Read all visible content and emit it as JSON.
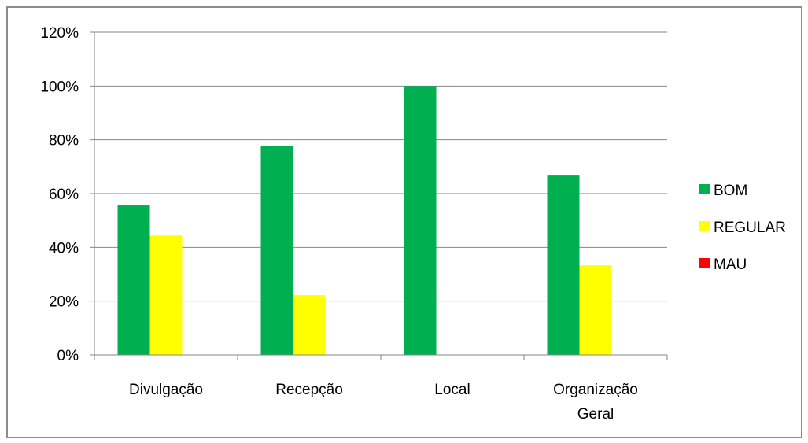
{
  "chart_data": {
    "type": "bar",
    "categories": [
      [
        "Divulgação"
      ],
      [
        "Recepção"
      ],
      [
        "Local"
      ],
      [
        "Organização",
        "Geral"
      ]
    ],
    "series": [
      {
        "name": "BOM",
        "color": "#00b050",
        "values": [
          55.6,
          77.8,
          100,
          66.7
        ]
      },
      {
        "name": "REGULAR",
        "color": "#ffff00",
        "values": [
          44.4,
          22.2,
          0,
          33.3
        ]
      },
      {
        "name": "MAU",
        "color": "#ff0000",
        "values": [
          0,
          0,
          0,
          0
        ]
      }
    ],
    "ylim": [
      0,
      120
    ],
    "yticks": [
      0,
      20,
      40,
      60,
      80,
      100,
      120
    ],
    "ytick_suffix": "%",
    "grid": true,
    "legend_position": "right",
    "title": "",
    "xlabel": "",
    "ylabel": ""
  }
}
